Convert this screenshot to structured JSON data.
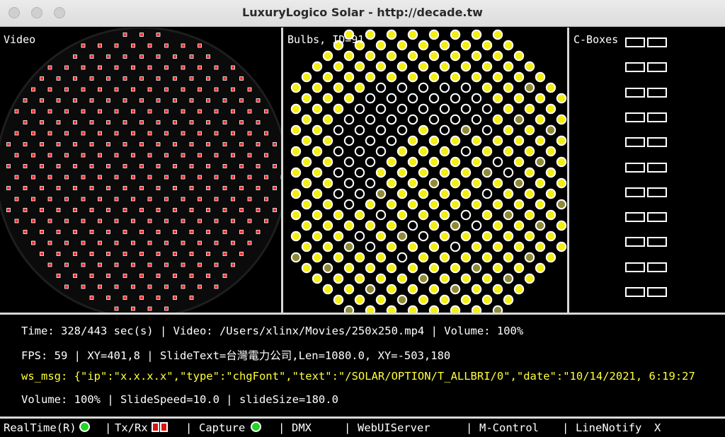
{
  "window": {
    "title": "LuxuryLogico Solar - http://decade.tw"
  },
  "panels": {
    "video": {
      "label": "Video"
    },
    "bulbs": {
      "label": "Bulbs, ID=91"
    },
    "cboxes": {
      "label": "C-Boxes",
      "count": 11
    }
  },
  "status": {
    "line1": "Time: 328/443 sec(s) | Video: /Users/xlinx/Movies/250x250.mp4 | Volume: 100%",
    "line2": "FPS: 59 | XY=401,8 | SlideText=台灣電力公司,Len=1080.0, XY=-503,180",
    "line3": "ws_msg: {\"ip\":\"x.x.x.x\",\"type\":\"chgFont\",\"text\":\"/SOLAR/OPTION/T_ALLBRI/0\",\"date\":\"10/14/2021, 6:19:27",
    "line4": "Volume: 100% | SlideSpeed=10.0 | slideSize=180.0"
  },
  "bottom_bar": {
    "realtime": "RealTime(R)",
    "sep1": "|",
    "txrx": "Tx/Rx",
    "sep2": "|",
    "capture": "Capture",
    "sep3": "|",
    "dmx": "DMX",
    "sep4": "|",
    "webui": "WebUIServer",
    "sep5": "|",
    "mcontrol": "M-Control",
    "sep6": "|",
    "linenotify": "LineNotify",
    "close": "X"
  },
  "colors": {
    "bulb_on": "#f4ee12",
    "bulb_dim": "#8f8a38",
    "video_dot": "#ff2a2a",
    "status_highlight": "#ffff3a",
    "indicator_green": "#22d622",
    "indicator_red": "#e01010"
  },
  "icons": {
    "realtime_indicator": "green-dot-icon",
    "txrx_indicator": "red-box-icon",
    "capture_indicator": "green-dot-icon"
  }
}
